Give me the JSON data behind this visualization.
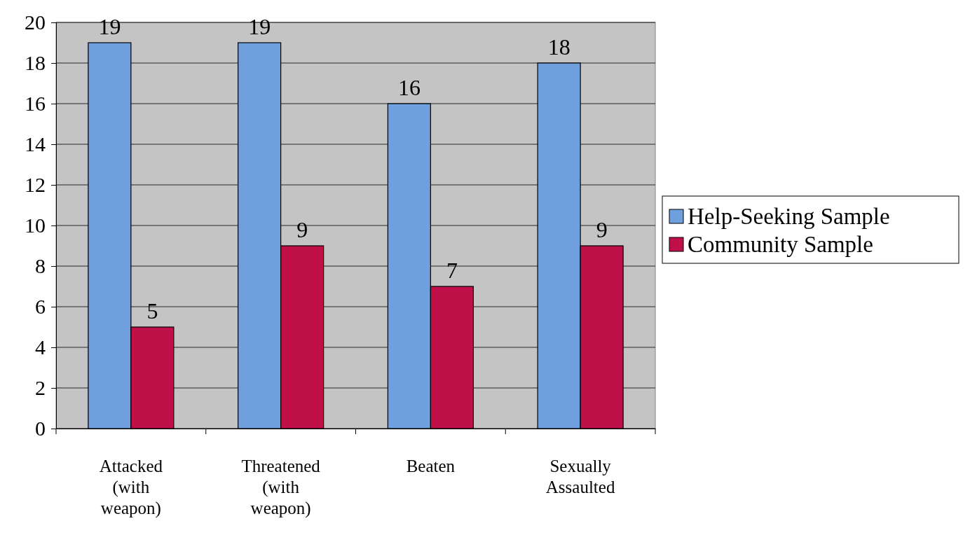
{
  "chart_data": {
    "type": "bar",
    "categories": [
      "Attacked (with weapon)",
      "Threatened (with weapon)",
      "Beaten",
      "Sexually Assaulted"
    ],
    "series": [
      {
        "name": "Help-Seeking Sample",
        "color": "#6f9fdc",
        "values": [
          19,
          19,
          16,
          18
        ]
      },
      {
        "name": "Community Sample",
        "color": "#c0104a",
        "values": [
          5,
          9,
          7,
          9
        ]
      }
    ],
    "ylim": [
      0,
      20
    ],
    "yticks": [
      0,
      2,
      4,
      6,
      8,
      10,
      12,
      14,
      16,
      18,
      20
    ],
    "grid": "y",
    "legend": "right",
    "data_labels": true
  }
}
